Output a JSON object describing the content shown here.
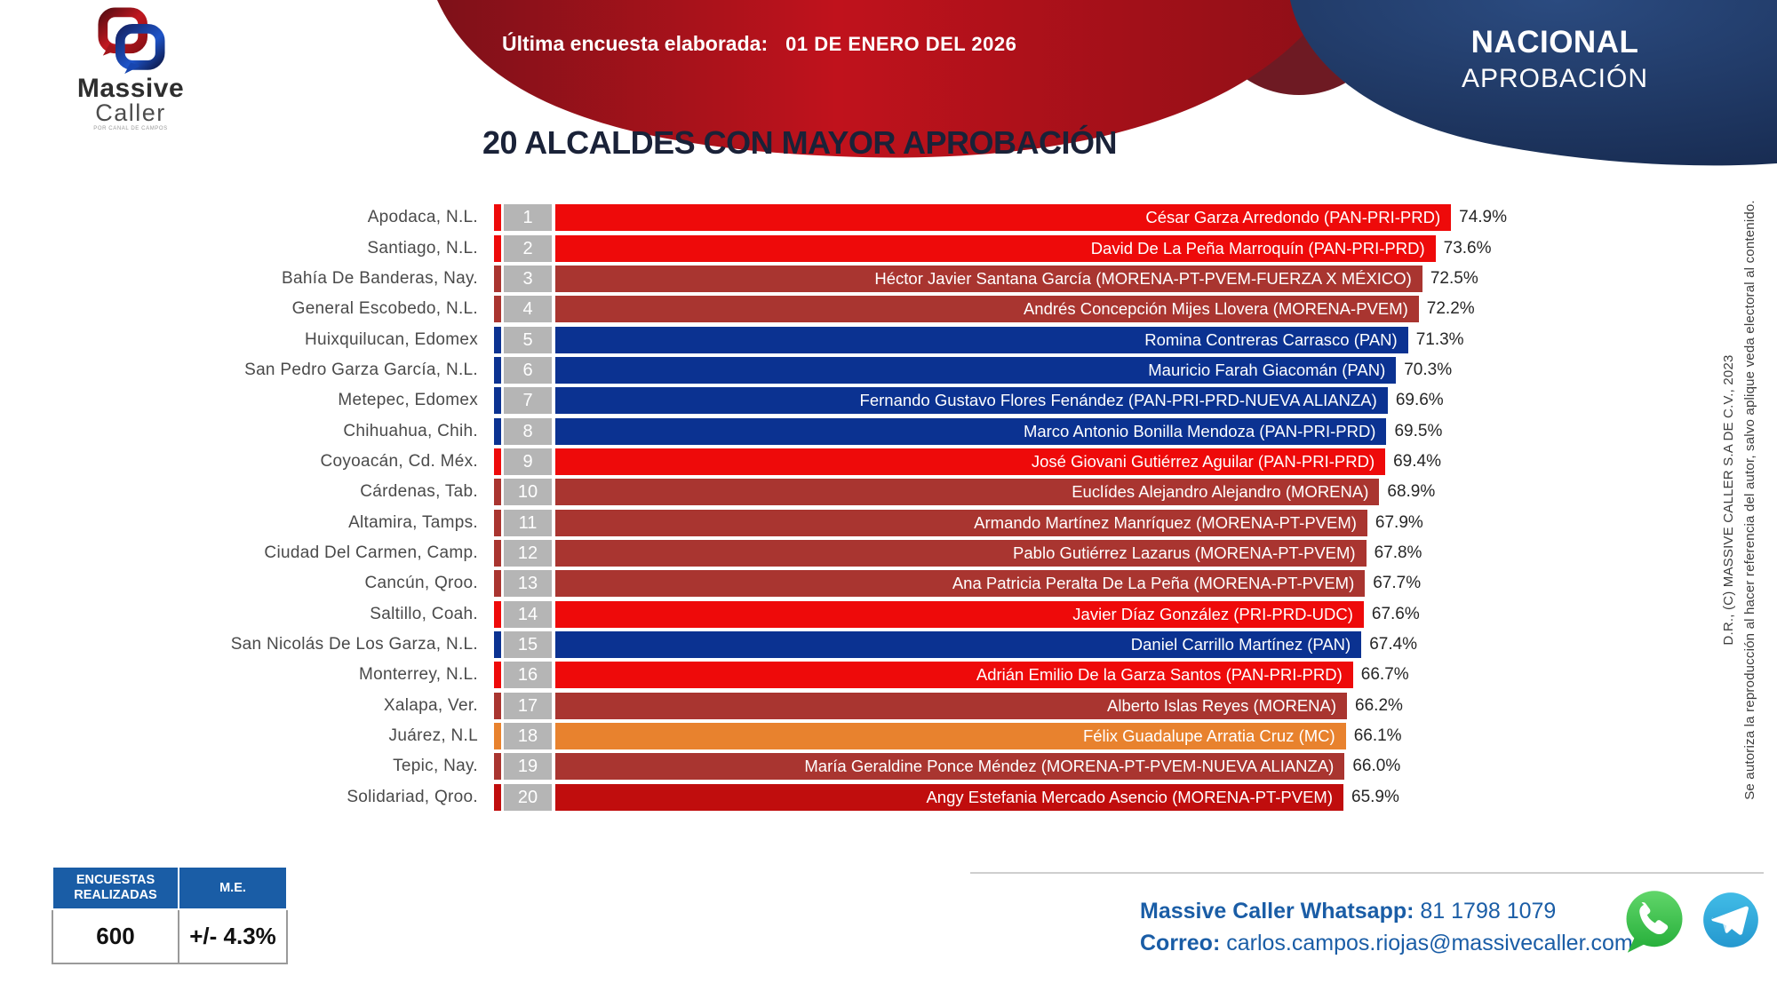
{
  "header": {
    "survey_label": "Última encuesta elaborada:",
    "survey_date": "01 DE ENERO DEL 2026",
    "region": "NACIONAL",
    "metric": "APROBACIÓN",
    "logo": {
      "brand_line1": "Massive",
      "brand_line2": "Caller",
      "tagline": "POR CANAL DE CAMPOS"
    }
  },
  "title": "20 ALCALDES CON MAYOR APROBACIÓN",
  "chart_data": {
    "type": "bar",
    "orientation": "horizontal",
    "value_unit": "%",
    "xlim": [
      0,
      80
    ],
    "title": "20 ALCALDES CON MAYOR APROBACIÓN",
    "colors": {
      "bright_red": "#ee0a0a",
      "brick": "#a93530",
      "navy": "#0b3291",
      "orange": "#e8822e",
      "crimson": "#c00d0d",
      "rank_gray": "#b5b5b5"
    },
    "rows": [
      {
        "rank": 1,
        "city": "Apodaca, N.L.",
        "label": "César Garza Arredondo (PAN-PRI-PRD)",
        "value": 74.9,
        "color": "bright_red"
      },
      {
        "rank": 2,
        "city": "Santiago, N.L.",
        "label": "David De La Peña Marroquín (PAN-PRI-PRD)",
        "value": 73.6,
        "color": "bright_red"
      },
      {
        "rank": 3,
        "city": "Bahía De Banderas, Nay.",
        "label": "Héctor Javier Santana García (MORENA-PT-PVEM-FUERZA X MÉXICO)",
        "value": 72.5,
        "color": "brick"
      },
      {
        "rank": 4,
        "city": "General Escobedo, N.L.",
        "label": "Andrés Concepción Mijes Llovera (MORENA-PVEM)",
        "value": 72.2,
        "color": "brick"
      },
      {
        "rank": 5,
        "city": "Huixquilucan, Edomex",
        "label": "Romina Contreras Carrasco (PAN)",
        "value": 71.3,
        "color": "navy"
      },
      {
        "rank": 6,
        "city": "San Pedro Garza García, N.L.",
        "label": "Mauricio Farah Giacomán (PAN)",
        "value": 70.3,
        "color": "navy"
      },
      {
        "rank": 7,
        "city": "Metepec, Edomex",
        "label": "Fernando Gustavo Flores Fenández (PAN-PRI-PRD-NUEVA ALIANZA)",
        "value": 69.6,
        "color": "navy"
      },
      {
        "rank": 8,
        "city": "Chihuahua, Chih.",
        "label": "Marco Antonio Bonilla Mendoza (PAN-PRI-PRD)",
        "value": 69.5,
        "color": "navy"
      },
      {
        "rank": 9,
        "city": "Coyoacán, Cd. Méx.",
        "label": "José Giovani Gutiérrez Aguilar (PAN-PRI-PRD)",
        "value": 69.4,
        "color": "bright_red"
      },
      {
        "rank": 10,
        "city": "Cárdenas, Tab.",
        "label": "Euclídes Alejandro Alejandro (MORENA)",
        "value": 68.9,
        "color": "brick"
      },
      {
        "rank": 11,
        "city": "Altamira, Tamps.",
        "label": "Armando Martínez Manríquez (MORENA-PT-PVEM)",
        "value": 67.9,
        "color": "brick"
      },
      {
        "rank": 12,
        "city": "Ciudad Del Carmen, Camp.",
        "label": "Pablo Gutiérrez Lazarus (MORENA-PT-PVEM)",
        "value": 67.8,
        "color": "brick"
      },
      {
        "rank": 13,
        "city": "Cancún, Qroo.",
        "label": "Ana Patricia Peralta De La Peña (MORENA-PT-PVEM)",
        "value": 67.7,
        "color": "brick"
      },
      {
        "rank": 14,
        "city": "Saltillo, Coah.",
        "label": "Javier Díaz González (PRI-PRD-UDC)",
        "value": 67.6,
        "color": "bright_red"
      },
      {
        "rank": 15,
        "city": "San Nicolás De Los Garza, N.L.",
        "label": "Daniel Carrillo Martínez (PAN)",
        "value": 67.4,
        "color": "navy"
      },
      {
        "rank": 16,
        "city": "Monterrey, N.L.",
        "label": "Adrián Emilio De la Garza Santos (PAN-PRI-PRD)",
        "value": 66.7,
        "color": "bright_red"
      },
      {
        "rank": 17,
        "city": "Xalapa, Ver.",
        "label": "Alberto Islas Reyes (MORENA)",
        "value": 66.2,
        "color": "brick"
      },
      {
        "rank": 18,
        "city": "Juárez, N.L",
        "label": "Félix Guadalupe Arratia Cruz (MC)",
        "value": 66.1,
        "color": "orange"
      },
      {
        "rank": 19,
        "city": "Tepic, Nay.",
        "label": "María Geraldine Ponce Méndez (MORENA-PT-PVEM-NUEVA ALIANZA)",
        "value": 66.0,
        "color": "brick"
      },
      {
        "rank": 20,
        "city": "Solidariad, Qroo.",
        "label": "Angy Estefania Mercado Asencio (MORENA-PT-PVEM)",
        "value": 65.9,
        "color": "crimson"
      }
    ]
  },
  "footer": {
    "table": {
      "col1_header": "ENCUESTAS REALIZADAS",
      "col2_header": "M.E.",
      "col1_value": "600",
      "col2_value": "+/- 4.3%"
    },
    "contact": {
      "whatsapp_label": "Massive Caller Whatsapp:",
      "whatsapp_number": "81 1798 1079",
      "email_label": "Correo:",
      "email": "carlos.campos.riojas@massivecaller.com"
    }
  },
  "legal": {
    "line1": "D.R., (C) MASSIVE CALLER S.A DE C.V., 2023",
    "line2": "Se autoriza la reproducción al hacer referencia del autor, salvo aplique veda electoral al contenido."
  }
}
